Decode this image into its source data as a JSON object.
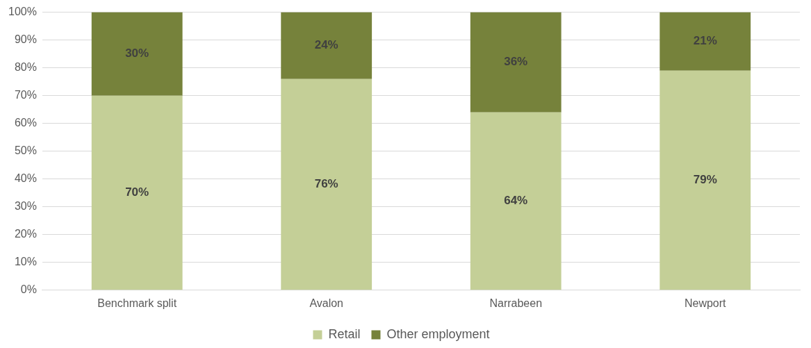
{
  "chart_data": {
    "type": "bar",
    "stacked": true,
    "categories": [
      "Benchmark split",
      "Avalon",
      "Narrabeen",
      "Newport"
    ],
    "series": [
      {
        "name": "Retail",
        "color": "#c4cf97",
        "values": [
          70,
          76,
          64,
          79
        ],
        "value_labels": [
          "70%",
          "76%",
          "64%",
          "79%"
        ]
      },
      {
        "name": "Other employment",
        "color": "#76823b",
        "values": [
          30,
          24,
          36,
          21
        ],
        "value_labels": [
          "30%",
          "24%",
          "36%",
          "21%"
        ]
      }
    ],
    "ylim": [
      0,
      100
    ],
    "yticks": [
      {
        "value": 0,
        "label": "0%"
      },
      {
        "value": 10,
        "label": "10%"
      },
      {
        "value": 20,
        "label": "20%"
      },
      {
        "value": 30,
        "label": "30%"
      },
      {
        "value": 40,
        "label": "40%"
      },
      {
        "value": 50,
        "label": "50%"
      },
      {
        "value": 60,
        "label": "60%"
      },
      {
        "value": 70,
        "label": "70%"
      },
      {
        "value": 80,
        "label": "80%"
      },
      {
        "value": 90,
        "label": "90%"
      },
      {
        "value": 100,
        "label": "100%"
      }
    ],
    "grid": "y",
    "legend": "bottom"
  }
}
